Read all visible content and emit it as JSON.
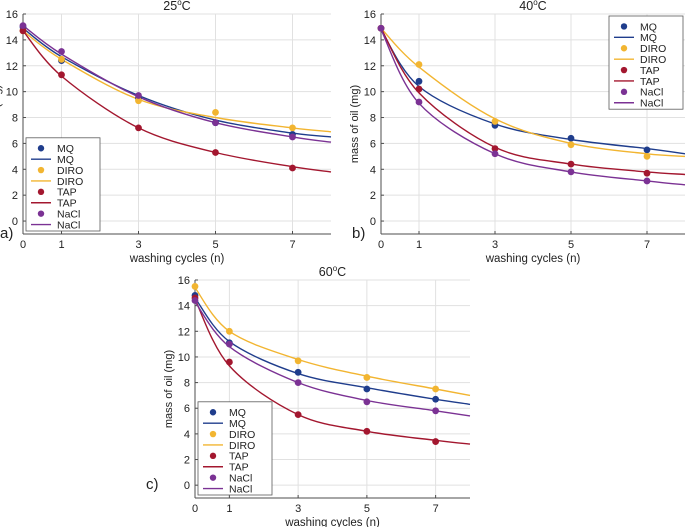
{
  "figure": {
    "axis_common": {
      "xlabel": "washing cycles (n)",
      "ylabel": "mass of oil (mg)"
    },
    "panel_labels": [
      "a)",
      "b)",
      "c)"
    ]
  },
  "colors": {
    "MQ": "#1f3d8c",
    "DIRO": "#f2b531",
    "TAP": "#a3172f",
    "NaCl": "#7b3294",
    "axis": "#4d4d4d",
    "grid": "#e1e1e1"
  },
  "chart_data": [
    {
      "type": "scatter",
      "title": "25°C",
      "title_base": "25",
      "title_sup": "o",
      "title_unit": "C",
      "xlabel": "washing cycles (n)",
      "ylabel": "mass of oil (mg)",
      "xlim": [
        0,
        8
      ],
      "ylim": [
        -1,
        16
      ],
      "x_ticks": [
        0,
        1,
        3,
        5,
        7
      ],
      "y_ticks": [
        0,
        2,
        4,
        6,
        8,
        10,
        12,
        14,
        16
      ],
      "legend_position": "bottom-left",
      "legend": [
        "MQ",
        "MQ",
        "DIRO",
        "DIRO",
        "TAP",
        "TAP",
        "NaCl",
        "NaCl"
      ],
      "series": [
        {
          "name": "MQ",
          "x": [
            0,
            1,
            3,
            5,
            7
          ],
          "y": [
            15.0,
            12.4,
            9.5,
            7.6,
            6.7
          ],
          "fit_y": [
            14.9,
            12.7,
            9.7,
            7.8,
            6.8,
            6.5
          ]
        },
        {
          "name": "DIRO",
          "x": [
            0,
            1,
            3,
            5,
            7
          ],
          "y": [
            14.7,
            12.5,
            9.3,
            8.4,
            7.2
          ],
          "fit_y": [
            14.7,
            12.5,
            9.4,
            8.0,
            7.2,
            6.9
          ]
        },
        {
          "name": "TAP",
          "x": [
            0,
            1,
            3,
            5,
            7
          ],
          "y": [
            14.7,
            11.3,
            7.2,
            5.3,
            4.1
          ],
          "fit_y": [
            14.7,
            11.2,
            7.2,
            5.3,
            4.2,
            3.8
          ]
        },
        {
          "name": "NaCl",
          "x": [
            0,
            1,
            3,
            5,
            7
          ],
          "y": [
            15.1,
            13.1,
            9.7,
            7.6,
            6.5
          ],
          "fit_y": [
            15.1,
            12.9,
            9.6,
            7.6,
            6.5,
            6.1
          ]
        }
      ]
    },
    {
      "type": "scatter",
      "title": "40°C",
      "title_base": "40",
      "title_sup": "o",
      "title_unit": "C",
      "xlabel": "washing cycles (n)",
      "ylabel": "mass of oil (mg)",
      "xlim": [
        0,
        8
      ],
      "ylim": [
        -1,
        16
      ],
      "x_ticks": [
        0,
        1,
        3,
        5,
        7
      ],
      "y_ticks": [
        0,
        2,
        4,
        6,
        8,
        10,
        12,
        14,
        16
      ],
      "legend_position": "top-right",
      "legend": [
        "MQ",
        "MQ",
        "DIRO",
        "DIRO",
        "TAP",
        "TAP",
        "NaCl",
        "NaCl"
      ],
      "series": [
        {
          "name": "MQ",
          "x": [
            0,
            1,
            3,
            5,
            7
          ],
          "y": [
            14.9,
            10.8,
            7.4,
            6.4,
            5.5
          ],
          "fit_y": [
            14.8,
            10.4,
            7.5,
            6.3,
            5.6,
            5.2
          ]
        },
        {
          "name": "DIRO",
          "x": [
            0,
            1,
            3,
            5,
            7
          ],
          "y": [
            14.9,
            12.1,
            7.7,
            5.9,
            5.0
          ],
          "fit_y": [
            14.9,
            11.9,
            7.9,
            6.0,
            5.2,
            5.0
          ]
        },
        {
          "name": "TAP",
          "x": [
            0,
            1,
            3,
            5,
            7
          ],
          "y": [
            14.9,
            10.2,
            5.6,
            4.4,
            3.7
          ],
          "fit_y": [
            14.9,
            9.9,
            5.7,
            4.4,
            3.8,
            3.6
          ]
        },
        {
          "name": "NaCl",
          "x": [
            0,
            1,
            3,
            5,
            7
          ],
          "y": [
            14.9,
            9.2,
            5.2,
            3.8,
            3.1
          ],
          "fit_y": [
            14.8,
            9.1,
            5.2,
            3.8,
            3.1,
            2.8
          ]
        }
      ]
    },
    {
      "type": "scatter",
      "title": "60°C",
      "title_base": "60",
      "title_sup": "o",
      "title_unit": "C",
      "xlabel": "washing cycles (n)",
      "ylabel": "mass of oil (mg)",
      "xlim": [
        0,
        8
      ],
      "ylim": [
        -1,
        16
      ],
      "x_ticks": [
        0,
        1,
        3,
        5,
        7
      ],
      "y_ticks": [
        0,
        2,
        4,
        6,
        8,
        10,
        12,
        14,
        16
      ],
      "legend_position": "bottom-left",
      "legend": [
        "MQ",
        "MQ",
        "DIRO",
        "DIRO",
        "TAP",
        "TAP",
        "NaCl",
        "NaCl"
      ],
      "series": [
        {
          "name": "MQ",
          "x": [
            0,
            1,
            3,
            5,
            7
          ],
          "y": [
            14.8,
            11.1,
            8.8,
            7.5,
            6.7
          ],
          "fit_y": [
            14.6,
            11.2,
            8.7,
            7.6,
            6.7,
            6.3
          ]
        },
        {
          "name": "DIRO",
          "x": [
            0,
            1,
            3,
            5,
            7
          ],
          "y": [
            15.5,
            12.0,
            9.7,
            8.4,
            7.5
          ],
          "fit_y": [
            15.4,
            12.0,
            9.8,
            8.5,
            7.5,
            7.0
          ]
        },
        {
          "name": "TAP",
          "x": [
            0,
            1,
            3,
            5,
            7
          ],
          "y": [
            14.6,
            9.6,
            5.5,
            4.2,
            3.4
          ],
          "fit_y": [
            14.5,
            9.3,
            5.5,
            4.2,
            3.5,
            3.2
          ]
        },
        {
          "name": "NaCl",
          "x": [
            0,
            1,
            3,
            5,
            7
          ],
          "y": [
            14.4,
            11.0,
            8.0,
            6.5,
            5.8
          ],
          "fit_y": [
            14.3,
            10.8,
            8.0,
            6.6,
            5.8,
            5.4
          ]
        }
      ]
    }
  ]
}
